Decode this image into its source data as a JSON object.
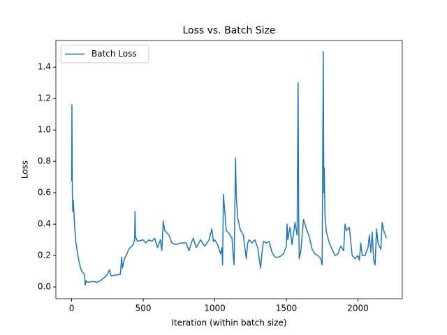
{
  "chart_data": {
    "type": "line",
    "title": "Loss vs. Batch Size",
    "x_label": "Iteration (within batch size)",
    "y_label": "Loss",
    "legend": "upper left",
    "xlim": [
      -110,
      2310
    ],
    "ylim": [
      -0.075,
      1.57
    ],
    "xticks": [
      0,
      500,
      1000,
      1500,
      2000
    ],
    "yticks": [
      {
        "value": 0,
        "label": "0.0"
      },
      0.2,
      0.4,
      0.6,
      0.8,
      {
        "value": 1,
        "label": "1.0"
      },
      1.2,
      1.4
    ],
    "x": [
      0,
      2,
      5,
      8,
      12,
      20,
      30,
      40,
      50,
      60,
      70,
      80,
      90,
      95,
      100,
      110,
      150,
      180,
      200,
      230,
      250,
      265,
      275,
      300,
      340,
      350,
      355,
      370,
      400,
      430,
      440,
      443,
      446,
      460,
      500,
      520,
      540,
      560,
      580,
      600,
      620,
      630,
      640,
      650,
      680,
      700,
      730,
      760,
      800,
      820,
      840,
      850,
      870,
      900,
      930,
      960,
      980,
      990,
      1000,
      1020,
      1040,
      1050,
      1055,
      1060,
      1070,
      1080,
      1100,
      1120,
      1130,
      1135,
      1145,
      1150,
      1160,
      1180,
      1200,
      1210,
      1220,
      1230,
      1240,
      1260,
      1280,
      1300,
      1310,
      1320,
      1330,
      1340,
      1360,
      1380,
      1400,
      1420,
      1450,
      1480,
      1500,
      1505,
      1510,
      1525,
      1540,
      1560,
      1575,
      1582,
      1586,
      1590,
      1600,
      1620,
      1640,
      1660,
      1680,
      1700,
      1720,
      1740,
      1750,
      1758,
      1762,
      1765,
      1770,
      1780,
      1800,
      1820,
      1840,
      1860,
      1880,
      1900,
      1910,
      1920,
      1940,
      1950,
      1960,
      1980,
      2000,
      2010,
      2020,
      2030,
      2050,
      2070,
      2080,
      2090,
      2100,
      2110,
      2120,
      2130,
      2140,
      2160,
      2170,
      2180,
      2200
    ],
    "series": [
      {
        "name": "Batch Loss",
        "color": "#1f77b4",
        "values": [
          0.67,
          1.16,
          0.62,
          0.48,
          0.55,
          0.4,
          0.28,
          0.22,
          0.17,
          0.13,
          0.1,
          0.09,
          0.08,
          0.01,
          0.04,
          0.03,
          0.035,
          0.03,
          0.04,
          0.06,
          0.08,
          0.11,
          0.07,
          0.075,
          0.08,
          0.19,
          0.12,
          0.18,
          0.24,
          0.27,
          0.3,
          0.48,
          0.32,
          0.29,
          0.3,
          0.28,
          0.3,
          0.29,
          0.31,
          0.25,
          0.3,
          0.23,
          0.42,
          0.36,
          0.33,
          0.28,
          0.27,
          0.28,
          0.28,
          0.23,
          0.29,
          0.31,
          0.25,
          0.3,
          0.26,
          0.3,
          0.37,
          0.29,
          0.3,
          0.27,
          0.21,
          0.25,
          0.14,
          0.59,
          0.48,
          0.36,
          0.34,
          0.31,
          0.19,
          0.14,
          0.82,
          0.58,
          0.44,
          0.36,
          0.33,
          0.25,
          0.18,
          0.28,
          0.3,
          0.28,
          0.3,
          0.25,
          0.18,
          0.12,
          0.22,
          0.29,
          0.28,
          0.29,
          0.22,
          0.19,
          0.19,
          0.21,
          0.26,
          0.4,
          0.3,
          0.38,
          0.27,
          0.41,
          0.33,
          1.3,
          0.45,
          0.18,
          0.22,
          0.43,
          0.37,
          0.32,
          0.24,
          0.21,
          0.2,
          0.18,
          0.14,
          1.5,
          0.6,
          0.76,
          0.45,
          0.35,
          0.28,
          0.24,
          0.2,
          0.21,
          0.26,
          0.23,
          0.4,
          0.36,
          0.38,
          0.29,
          0.2,
          0.18,
          0.2,
          0.17,
          0.28,
          0.2,
          0.2,
          0.25,
          0.33,
          0.22,
          0.35,
          0.17,
          0.14,
          0.37,
          0.28,
          0.24,
          0.41,
          0.36,
          0.31
        ]
      }
    ]
  }
}
